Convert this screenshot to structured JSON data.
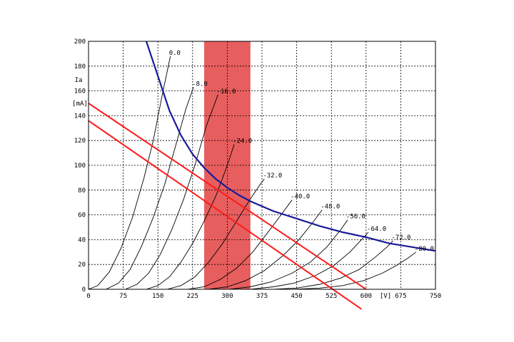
{
  "chart_data": {
    "type": "line",
    "title": "",
    "ylabel": "Ia",
    "yunit": "[mA]",
    "xunit": "[V]",
    "xlim": [
      0,
      750
    ],
    "ylim": [
      0,
      200
    ],
    "grid": true,
    "x_ticks": [
      "0",
      "75",
      "150",
      "225",
      "300",
      "375",
      "450",
      "525",
      "600",
      "675",
      "750"
    ],
    "y_ticks": [
      "0",
      "20",
      "40",
      "60",
      "80",
      "100",
      "120",
      "140",
      "160",
      "180",
      "200"
    ],
    "colors": {
      "plate_curves": "#000000",
      "dissipation_curve": "#1a1a9a",
      "load_lines": "#ff1a1a",
      "operating_band": "#e65555"
    },
    "plate_curves": [
      {
        "label": "0.0",
        "points": [
          [
            0,
            0
          ],
          [
            20,
            3
          ],
          [
            45,
            14
          ],
          [
            70,
            33
          ],
          [
            95,
            58
          ],
          [
            120,
            90
          ],
          [
            140,
            120
          ],
          [
            160,
            158
          ],
          [
            177,
            188
          ]
        ]
      },
      {
        "label": "-8.0",
        "points": [
          [
            38,
            0
          ],
          [
            65,
            5
          ],
          [
            90,
            16
          ],
          [
            115,
            35
          ],
          [
            140,
            58
          ],
          [
            165,
            85
          ],
          [
            190,
            118
          ],
          [
            210,
            145
          ],
          [
            227,
            163
          ]
        ]
      },
      {
        "label": "-16.0",
        "points": [
          [
            80,
            0
          ],
          [
            105,
            4
          ],
          [
            130,
            13
          ],
          [
            155,
            28
          ],
          [
            180,
            48
          ],
          [
            205,
            72
          ],
          [
            230,
            100
          ],
          [
            255,
            132
          ],
          [
            280,
            157
          ]
        ]
      },
      {
        "label": "-24.0",
        "points": [
          [
            125,
            0
          ],
          [
            150,
            3
          ],
          [
            175,
            10
          ],
          [
            200,
            22
          ],
          [
            225,
            37
          ],
          [
            250,
            55
          ],
          [
            275,
            75
          ],
          [
            300,
            100
          ],
          [
            315,
            117
          ]
        ]
      },
      {
        "label": "-32.0",
        "points": [
          [
            170,
            0
          ],
          [
            200,
            3
          ],
          [
            230,
            10
          ],
          [
            260,
            22
          ],
          [
            290,
            37
          ],
          [
            320,
            55
          ],
          [
            350,
            73
          ],
          [
            370,
            84
          ],
          [
            380,
            89
          ]
        ]
      },
      {
        "label": "-40.0",
        "points": [
          [
            215,
            0
          ],
          [
            250,
            2
          ],
          [
            285,
            8
          ],
          [
            320,
            17
          ],
          [
            355,
            30
          ],
          [
            390,
            47
          ],
          [
            420,
            62
          ],
          [
            440,
            72
          ]
        ]
      },
      {
        "label": "-48.0",
        "points": [
          [
            260,
            0
          ],
          [
            300,
            2
          ],
          [
            340,
            7
          ],
          [
            380,
            15
          ],
          [
            420,
            27
          ],
          [
            455,
            40
          ],
          [
            485,
            54
          ],
          [
            505,
            64
          ]
        ]
      },
      {
        "label": "-56.0",
        "points": [
          [
            305,
            0
          ],
          [
            350,
            2
          ],
          [
            395,
            6
          ],
          [
            440,
            13
          ],
          [
            480,
            22
          ],
          [
            515,
            34
          ],
          [
            545,
            48
          ],
          [
            560,
            56
          ]
        ]
      },
      {
        "label": "-64.0",
        "points": [
          [
            350,
            0
          ],
          [
            400,
            2
          ],
          [
            445,
            5
          ],
          [
            490,
            11
          ],
          [
            530,
            19
          ],
          [
            565,
            30
          ],
          [
            590,
            40
          ],
          [
            605,
            46
          ]
        ]
      },
      {
        "label": "-72.0",
        "points": [
          [
            400,
            0
          ],
          [
            450,
            1
          ],
          [
            500,
            4
          ],
          [
            545,
            9
          ],
          [
            585,
            16
          ],
          [
            620,
            26
          ],
          [
            645,
            34
          ],
          [
            658,
            39
          ]
        ]
      },
      {
        "label": "-80.0",
        "points": [
          [
            445,
            0
          ],
          [
            500,
            1
          ],
          [
            550,
            3
          ],
          [
            595,
            7
          ],
          [
            635,
            13
          ],
          [
            665,
            19
          ],
          [
            690,
            25
          ],
          [
            708,
            30
          ]
        ]
      }
    ],
    "max_dissipation": {
      "label": "",
      "points": [
        [
          125,
          200
        ],
        [
          150,
          172
        ],
        [
          175,
          144
        ],
        [
          200,
          124
        ],
        [
          225,
          109
        ],
        [
          250,
          98
        ],
        [
          275,
          89
        ],
        [
          300,
          82
        ],
        [
          325,
          76
        ],
        [
          350,
          71
        ],
        [
          400,
          63
        ],
        [
          450,
          57
        ],
        [
          500,
          51
        ],
        [
          550,
          46
        ],
        [
          600,
          42
        ],
        [
          650,
          37
        ],
        [
          700,
          34
        ],
        [
          750,
          31
        ]
      ]
    },
    "load_lines": [
      {
        "label": "",
        "points": [
          [
            0,
            150
          ],
          [
            600,
            0
          ]
        ]
      },
      {
        "label": "",
        "points": [
          [
            0,
            136
          ],
          [
            590,
            -16
          ]
        ]
      }
    ],
    "operating_band": {
      "x_from": 250,
      "x_to": 350
    }
  }
}
